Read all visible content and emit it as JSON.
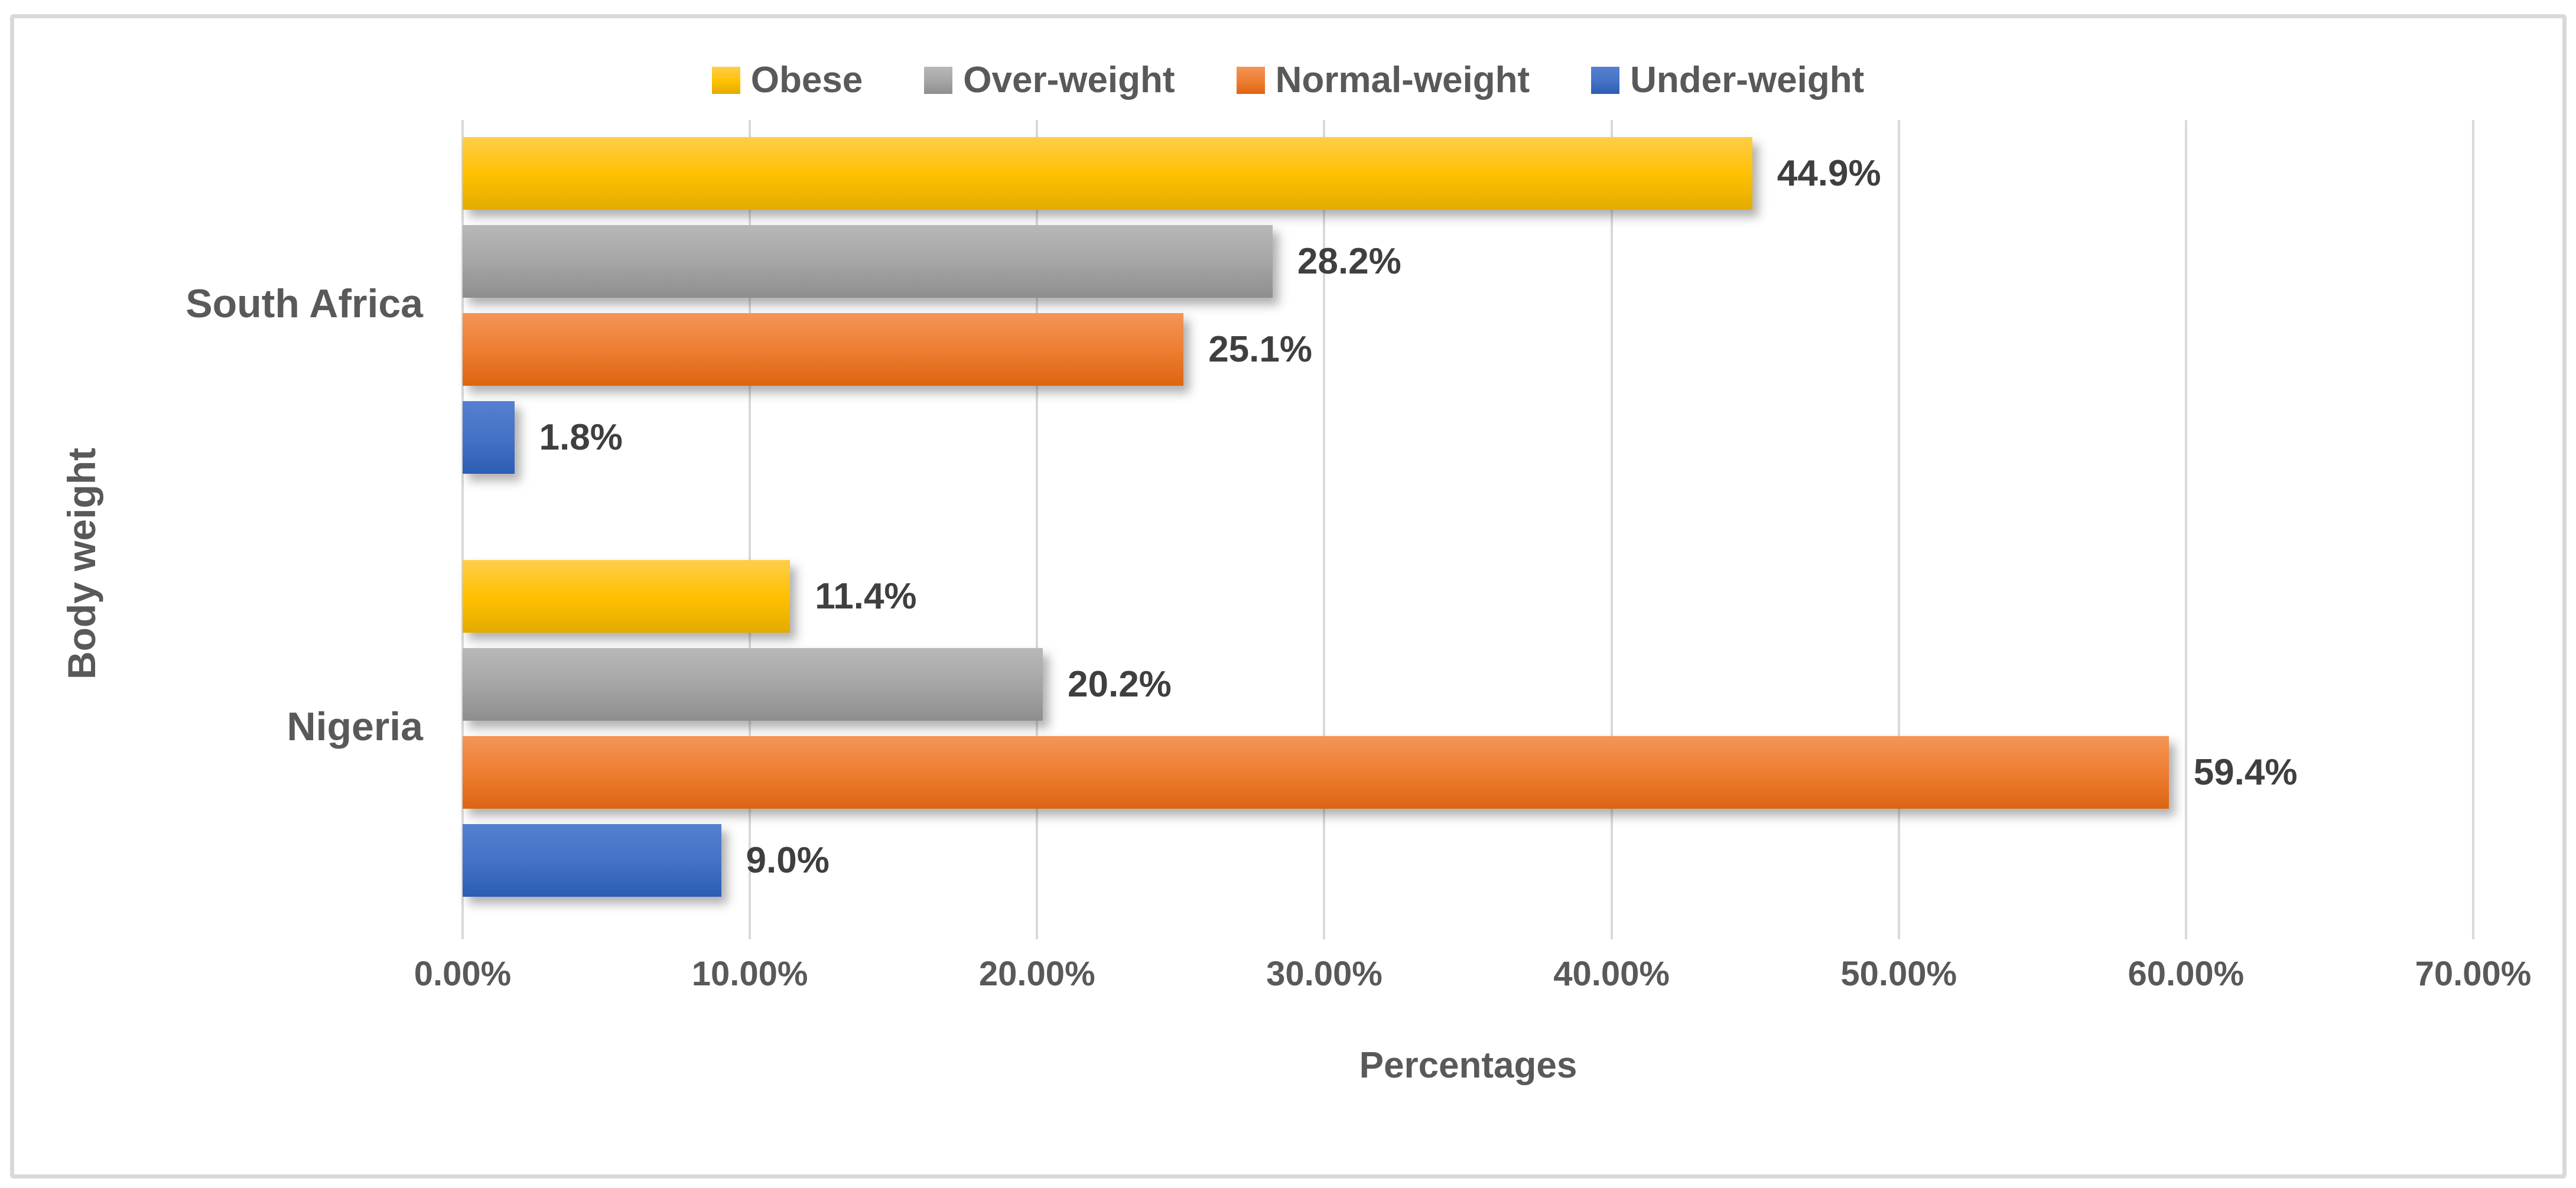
{
  "chart_data": {
    "type": "bar",
    "orientation": "horizontal",
    "title": "",
    "xlabel": "Percentages",
    "ylabel": "Body weight",
    "categories": [
      "South Africa",
      "Nigeria"
    ],
    "series": [
      {
        "name": "Obese",
        "values": [
          44.9,
          11.4
        ],
        "labels": [
          "44.9%",
          "11.4%"
        ],
        "color": "#FFC000",
        "grad_top": "#FFCE49",
        "grad_bottom": "#E2AB00"
      },
      {
        "name": "Over-weight",
        "values": [
          28.2,
          20.2
        ],
        "labels": [
          "28.2%",
          "20.2%"
        ],
        "color": "#A5A5A5",
        "grad_top": "#B8B8B8",
        "grad_bottom": "#8E8E8E"
      },
      {
        "name": "Normal-weight",
        "values": [
          25.1,
          59.4
        ],
        "labels": [
          "25.1%",
          "59.4%"
        ],
        "color": "#ED7D31",
        "grad_top": "#F49557",
        "grad_bottom": "#DC6511"
      },
      {
        "name": "Under-weight",
        "values": [
          1.8,
          9.0
        ],
        "labels": [
          "1.8%",
          "9.0%"
        ],
        "color": "#4472C4",
        "grad_top": "#5580D2",
        "grad_bottom": "#2C5DB4"
      }
    ],
    "x_ticks": [
      "0.00%",
      "10.00%",
      "20.00%",
      "30.00%",
      "40.00%",
      "50.00%",
      "60.00%",
      "70.00%"
    ],
    "xlim": [
      0,
      70
    ],
    "grid": true,
    "legend_position": "top",
    "gridline_color": "#D9D9D9",
    "frame_border_color": "#D9D9D9",
    "text_color": "#595959",
    "data_label_color": "#3F3F3F"
  }
}
